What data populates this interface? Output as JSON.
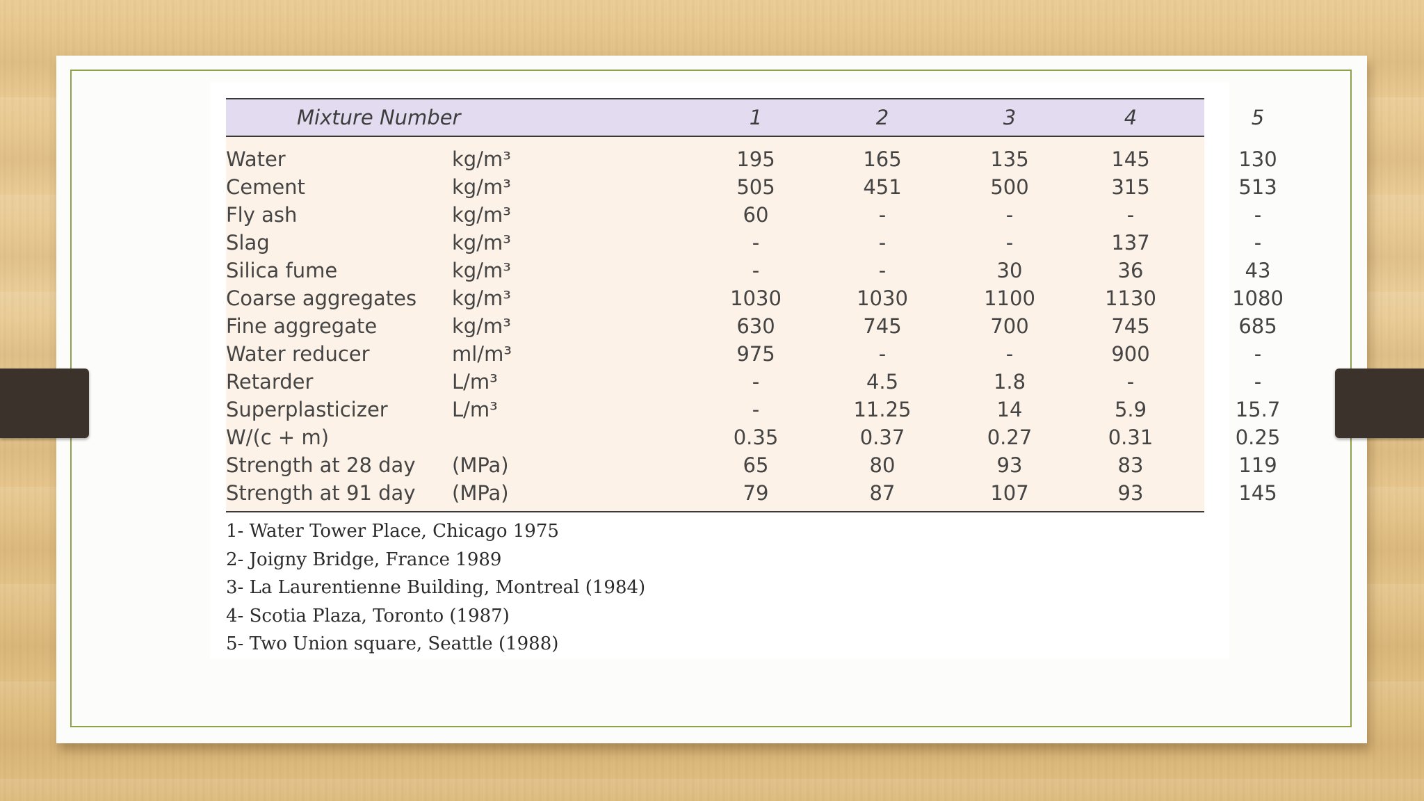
{
  "table": {
    "header": {
      "label": "Mixture Number",
      "columns": [
        "1",
        "2",
        "3",
        "4",
        "5"
      ]
    },
    "rows": [
      {
        "name": "Water",
        "unit": "kg/m³",
        "values": [
          "195",
          "165",
          "135",
          "145",
          "130"
        ]
      },
      {
        "name": "Cement",
        "unit": "kg/m³",
        "values": [
          "505",
          "451",
          "500",
          "315",
          "513"
        ]
      },
      {
        "name": "Fly ash",
        "unit": "kg/m³",
        "values": [
          "60",
          "-",
          "-",
          "-",
          "-"
        ]
      },
      {
        "name": "Slag",
        "unit": "kg/m³",
        "values": [
          "-",
          "-",
          "-",
          "137",
          "-"
        ]
      },
      {
        "name": "Silica fume",
        "unit": "kg/m³",
        "values": [
          "-",
          "-",
          "30",
          "36",
          "43"
        ]
      },
      {
        "name": "Coarse aggregates",
        "unit": "kg/m³",
        "values": [
          "1030",
          "1030",
          "1100",
          "1130",
          "1080"
        ]
      },
      {
        "name": "Fine aggregate",
        "unit": "kg/m³",
        "values": [
          "630",
          "745",
          "700",
          "745",
          "685"
        ]
      },
      {
        "name": "Water reducer",
        "unit": "ml/m³",
        "values": [
          "975",
          "-",
          "-",
          "900",
          "-"
        ]
      },
      {
        "name": "Retarder",
        "unit": "L/m³",
        "values": [
          "-",
          "4.5",
          "1.8",
          "-",
          "-"
        ]
      },
      {
        "name": "Superplasticizer",
        "unit": "L/m³",
        "values": [
          "-",
          "11.25",
          "14",
          "5.9",
          "15.7"
        ]
      },
      {
        "name": "W/(c + m)",
        "unit": "",
        "values": [
          "0.35",
          "0.37",
          "0.27",
          "0.31",
          "0.25"
        ]
      },
      {
        "name": "Strength at 28 day",
        "unit": "(MPa)",
        "values": [
          "65",
          "80",
          "93",
          "83",
          "119"
        ]
      },
      {
        "name": "Strength at 91 day",
        "unit": "(MPa)",
        "values": [
          "79",
          "87",
          "107",
          "93",
          "145"
        ]
      }
    ]
  },
  "references": [
    "1- Water Tower Place, Chicago 1975",
    "2- Joigny Bridge, France 1989",
    "3- La Laurentienne Building, Montreal (1984)",
    "4- Scotia Plaza, Toronto (1987)",
    "5- Two Union square, Seattle (1988)"
  ],
  "colors": {
    "frame": "#8da24a",
    "header_band": "#e3dcf0",
    "table_body": "#fdf2e7",
    "clip": "#3b322b"
  }
}
